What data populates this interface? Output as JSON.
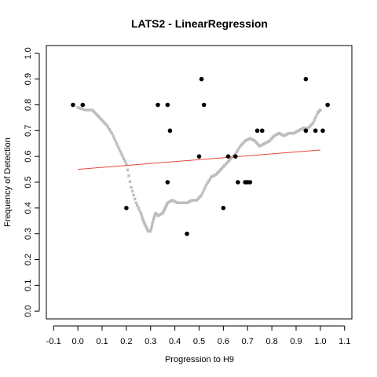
{
  "chart_data": {
    "type": "scatter",
    "title": "LATS2 - LinearRegression",
    "xlabel": "Progression to H9",
    "ylabel": "Frequency of Detection",
    "xlim": [
      -0.13,
      1.13
    ],
    "ylim": [
      -0.03,
      1.03
    ],
    "xticks": [
      -0.1,
      0.0,
      0.1,
      0.2,
      0.3,
      0.4,
      0.5,
      0.6,
      0.7,
      0.8,
      0.9,
      1.0,
      1.1
    ],
    "xtick_labels": [
      "-0.1",
      "0.0",
      "0.1",
      "0.2",
      "0.3",
      "0.4",
      "0.5",
      "0.6",
      "0.7",
      "0.8",
      "0.9",
      "1.0",
      "1.1"
    ],
    "yticks": [
      0.0,
      0.1,
      0.2,
      0.3,
      0.4,
      0.5,
      0.6,
      0.7,
      0.8,
      0.9,
      1.0
    ],
    "ytick_labels": [
      "0.0",
      "0.1",
      "0.2",
      "0.3",
      "0.4",
      "0.5",
      "0.6",
      "0.7",
      "0.8",
      "0.9",
      "1.0"
    ],
    "grid": false,
    "series": [
      {
        "kind": "smoothed-curve",
        "color": "#bebebe",
        "points": [
          [
            0.0,
            0.79
          ],
          [
            0.03,
            0.78
          ],
          [
            0.06,
            0.78
          ],
          [
            0.08,
            0.76
          ],
          [
            0.1,
            0.74
          ],
          [
            0.12,
            0.72
          ],
          [
            0.14,
            0.69
          ],
          [
            0.16,
            0.65
          ],
          [
            0.18,
            0.61
          ],
          [
            0.2,
            0.57
          ],
          [
            0.22,
            0.48
          ],
          [
            0.24,
            0.42
          ],
          [
            0.26,
            0.38
          ],
          [
            0.27,
            0.35
          ],
          [
            0.28,
            0.33
          ],
          [
            0.29,
            0.31
          ],
          [
            0.3,
            0.31
          ],
          [
            0.31,
            0.35
          ],
          [
            0.32,
            0.38
          ],
          [
            0.33,
            0.37
          ],
          [
            0.35,
            0.38
          ],
          [
            0.36,
            0.4
          ],
          [
            0.37,
            0.42
          ],
          [
            0.39,
            0.43
          ],
          [
            0.41,
            0.42
          ],
          [
            0.43,
            0.42
          ],
          [
            0.45,
            0.42
          ],
          [
            0.47,
            0.43
          ],
          [
            0.49,
            0.43
          ],
          [
            0.51,
            0.45
          ],
          [
            0.53,
            0.49
          ],
          [
            0.55,
            0.52
          ],
          [
            0.57,
            0.53
          ],
          [
            0.59,
            0.55
          ],
          [
            0.61,
            0.57
          ],
          [
            0.63,
            0.59
          ],
          [
            0.65,
            0.61
          ],
          [
            0.67,
            0.64
          ],
          [
            0.69,
            0.66
          ],
          [
            0.71,
            0.67
          ],
          [
            0.73,
            0.66
          ],
          [
            0.75,
            0.64
          ],
          [
            0.77,
            0.65
          ],
          [
            0.79,
            0.66
          ],
          [
            0.81,
            0.68
          ],
          [
            0.83,
            0.69
          ],
          [
            0.85,
            0.68
          ],
          [
            0.87,
            0.69
          ],
          [
            0.89,
            0.69
          ],
          [
            0.91,
            0.7
          ],
          [
            0.93,
            0.71
          ],
          [
            0.95,
            0.71
          ],
          [
            0.97,
            0.73
          ],
          [
            0.99,
            0.77
          ],
          [
            1.0,
            0.78
          ]
        ]
      },
      {
        "kind": "observed-points",
        "color": "#000000",
        "points": [
          [
            -0.02,
            0.8
          ],
          [
            0.02,
            0.8
          ],
          [
            0.2,
            0.4
          ],
          [
            0.33,
            0.8
          ],
          [
            0.37,
            0.8
          ],
          [
            0.37,
            0.5
          ],
          [
            0.38,
            0.7
          ],
          [
            0.45,
            0.3
          ],
          [
            0.5,
            0.6
          ],
          [
            0.51,
            0.9
          ],
          [
            0.52,
            0.8
          ],
          [
            0.6,
            0.4
          ],
          [
            0.62,
            0.6
          ],
          [
            0.65,
            0.6
          ],
          [
            0.66,
            0.5
          ],
          [
            0.69,
            0.5
          ],
          [
            0.7,
            0.5
          ],
          [
            0.71,
            0.5
          ],
          [
            0.74,
            0.7
          ],
          [
            0.76,
            0.7
          ],
          [
            0.94,
            0.9
          ],
          [
            0.94,
            0.7
          ],
          [
            0.98,
            0.7
          ],
          [
            1.01,
            0.7
          ],
          [
            1.03,
            0.8
          ]
        ]
      },
      {
        "kind": "regression-line",
        "color": "#e8463a",
        "points": [
          [
            0.0,
            0.55
          ],
          [
            1.0,
            0.625
          ]
        ]
      }
    ]
  }
}
